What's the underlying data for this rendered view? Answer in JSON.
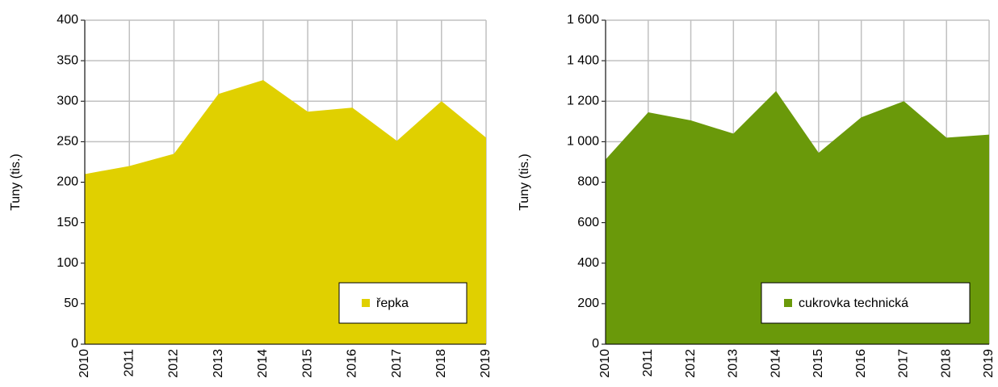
{
  "chart_data": [
    {
      "type": "area",
      "y_label": "Tuny (tis.)",
      "categories": [
        "2010",
        "2011",
        "2012",
        "2013",
        "2014",
        "2015",
        "2016",
        "2017",
        "2018",
        "2019"
      ],
      "series": [
        {
          "name": "řepka",
          "color": "#e0d000",
          "values": [
            210,
            220,
            235,
            309,
            326,
            287,
            292,
            251,
            300,
            255
          ]
        }
      ],
      "ylim": [
        0,
        400
      ],
      "yticks": [
        0,
        50,
        100,
        150,
        200,
        250,
        300,
        350,
        400
      ],
      "grid": true,
      "legend": "lower right"
    },
    {
      "type": "area",
      "y_label": "Tuny (tis.)",
      "categories": [
        "2010",
        "2011",
        "2012",
        "2013",
        "2014",
        "2015",
        "2016",
        "2017",
        "2018",
        "2019"
      ],
      "series": [
        {
          "name": "cukrovka technická",
          "color": "#6a990a",
          "values": [
            912,
            1145,
            1105,
            1040,
            1250,
            945,
            1120,
            1200,
            1020,
            1035
          ]
        }
      ],
      "ylim": [
        0,
        1600
      ],
      "yticks": [
        0,
        200,
        400,
        600,
        800,
        {
          "value": 1000,
          "label": "1 000"
        },
        {
          "value": 1200,
          "label": "1 200"
        },
        {
          "value": 1400,
          "label": "1 400"
        },
        {
          "value": 1600,
          "label": "1 600"
        }
      ],
      "grid": true,
      "legend": "lower right"
    }
  ]
}
